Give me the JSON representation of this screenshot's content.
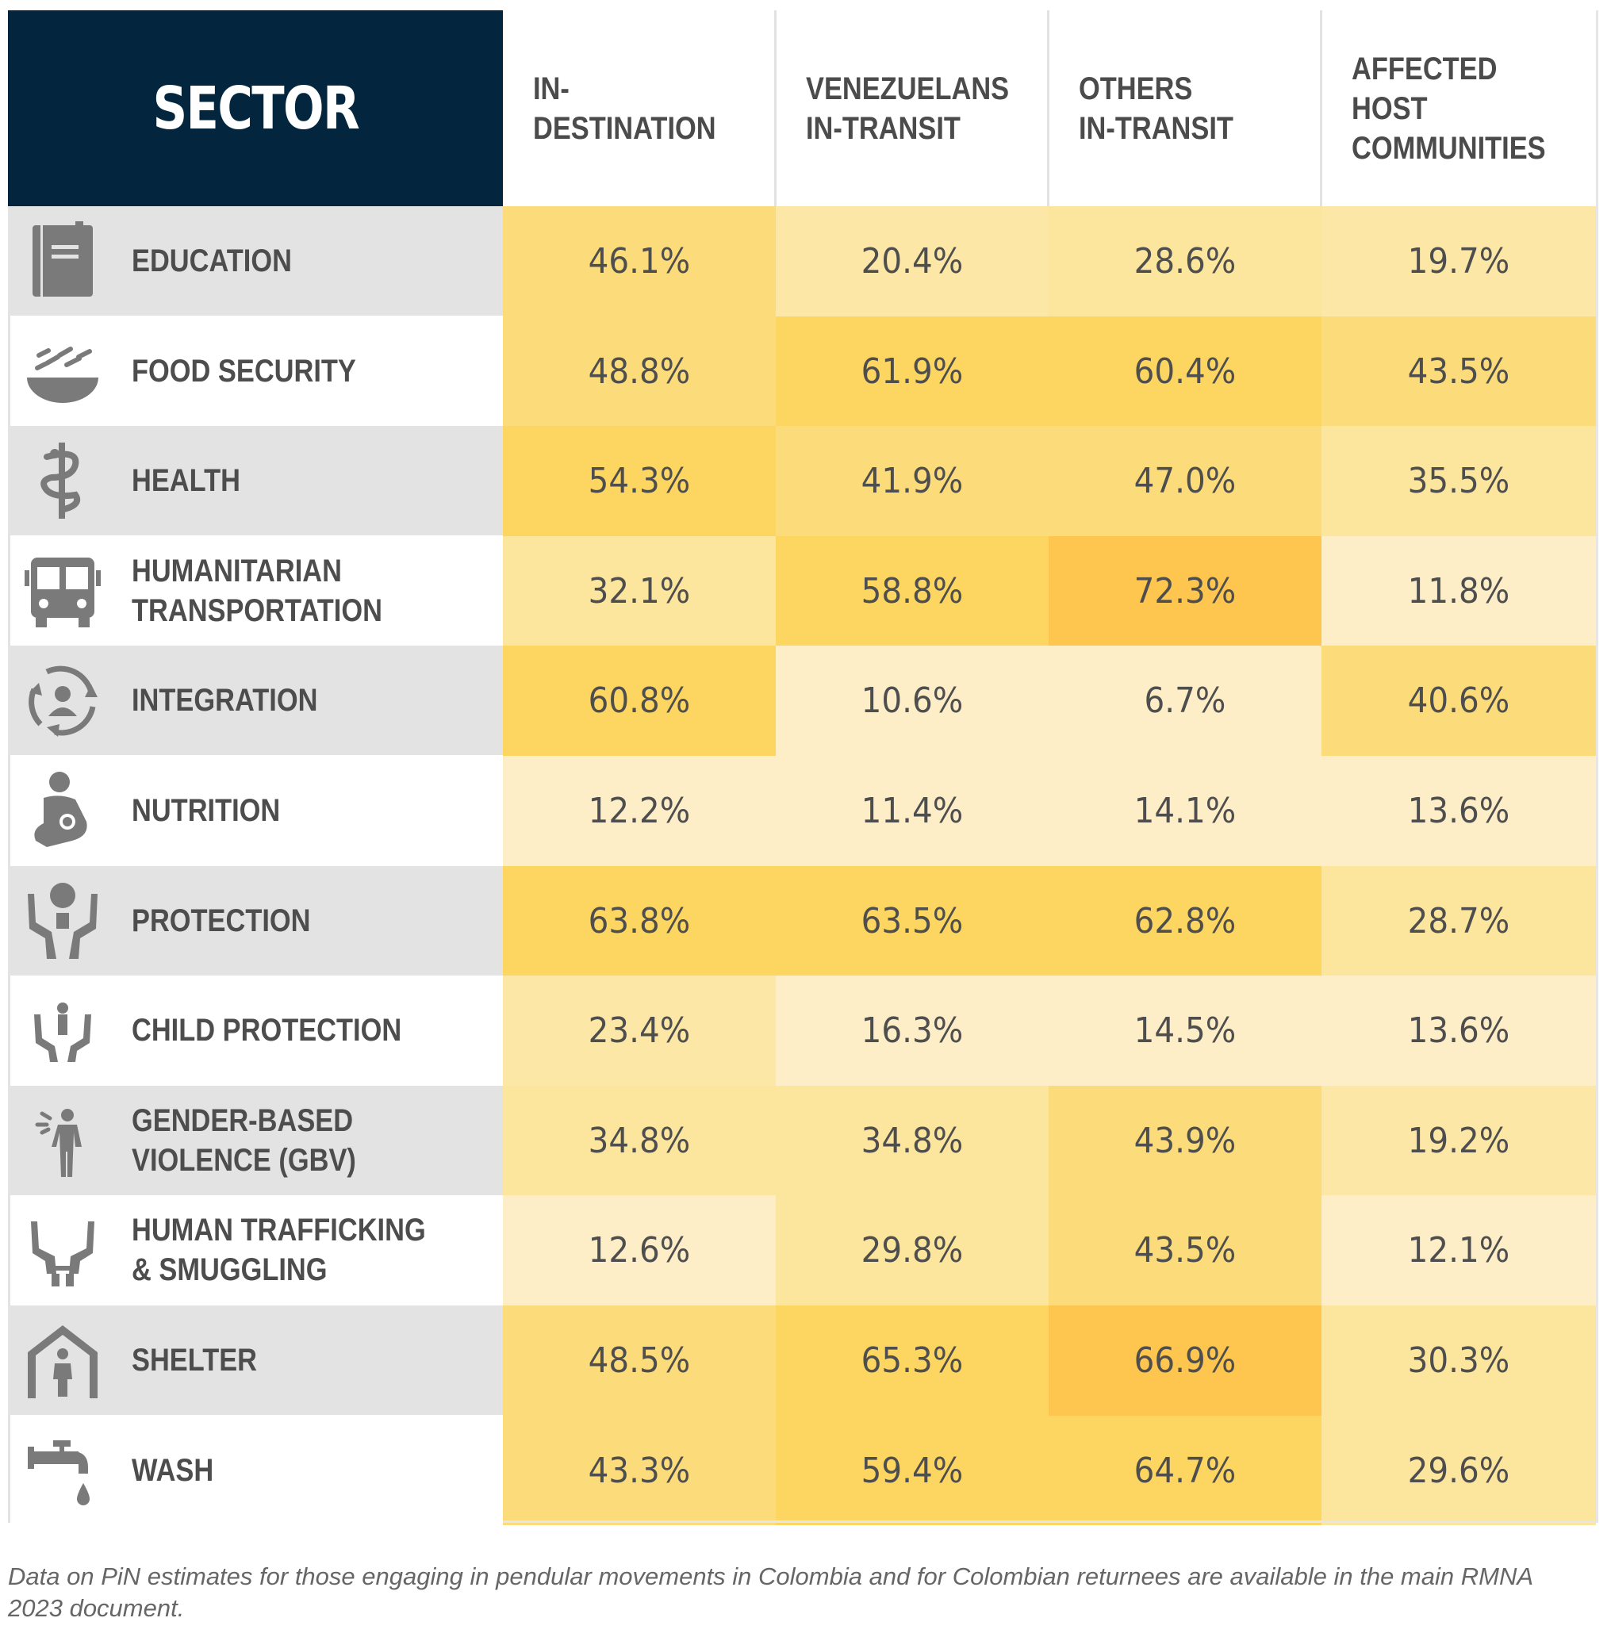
{
  "header": {
    "sector": "SECTOR",
    "columns": [
      "IN-DESTINATION",
      "VENEZUELANS\nIN-TRANSIT",
      "OTHERS\nIN-TRANSIT",
      "AFFECTED HOST\nCOMMUNITIES"
    ]
  },
  "rows": [
    {
      "label": "EDUCATION",
      "icon": "book-icon"
    },
    {
      "label": "FOOD SECURITY",
      "icon": "food-bowl-icon"
    },
    {
      "label": "HEALTH",
      "icon": "caduceus-icon"
    },
    {
      "label": "HUMANITARIAN\nTRANSPORTATION",
      "icon": "bus-icon"
    },
    {
      "label": "INTEGRATION",
      "icon": "integration-cycle-icon"
    },
    {
      "label": "NUTRITION",
      "icon": "breastfeeding-icon"
    },
    {
      "label": "PROTECTION",
      "icon": "protection-hands-icon"
    },
    {
      "label": "CHILD PROTECTION",
      "icon": "child-protection-icon"
    },
    {
      "label": "GENDER-BASED\nVIOLENCE (GBV)",
      "icon": "gbv-person-icon"
    },
    {
      "label": "HUMAN TRAFFICKING\n& SMUGGLING",
      "icon": "handcuffed-hands-icon"
    },
    {
      "label": "SHELTER",
      "icon": "shelter-house-icon"
    },
    {
      "label": "WASH",
      "icon": "water-tap-icon"
    }
  ],
  "chart_data": {
    "type": "heatmap",
    "columns": [
      "IN-DESTINATION",
      "VENEZUELANS IN-TRANSIT",
      "OTHERS IN-TRANSIT",
      "AFFECTED HOST COMMUNITIES"
    ],
    "rows": [
      "EDUCATION",
      "FOOD SECURITY",
      "HEALTH",
      "HUMANITARIAN TRANSPORTATION",
      "INTEGRATION",
      "NUTRITION",
      "PROTECTION",
      "CHILD PROTECTION",
      "GENDER-BASED VIOLENCE (GBV)",
      "HUMAN TRAFFICKING & SMUGGLING",
      "SHELTER",
      "WASH"
    ],
    "values": [
      [
        46.1,
        20.4,
        28.6,
        19.7
      ],
      [
        48.8,
        61.9,
        60.4,
        43.5
      ],
      [
        54.3,
        41.9,
        47.0,
        35.5
      ],
      [
        32.1,
        58.8,
        72.3,
        11.8
      ],
      [
        60.8,
        10.6,
        6.7,
        40.6
      ],
      [
        12.2,
        11.4,
        14.1,
        13.6
      ],
      [
        63.8,
        63.5,
        62.8,
        28.7
      ],
      [
        23.4,
        16.3,
        14.5,
        13.6
      ],
      [
        34.8,
        34.8,
        43.9,
        19.2
      ],
      [
        12.6,
        29.8,
        43.5,
        12.1
      ],
      [
        48.5,
        65.3,
        66.9,
        30.3
      ],
      [
        43.3,
        59.4,
        64.7,
        29.6
      ]
    ],
    "labels": [
      [
        "46.1%",
        "20.4%",
        "28.6%",
        "19.7%"
      ],
      [
        "48.8%",
        "61.9%",
        "60.4%",
        "43.5%"
      ],
      [
        "54.3%",
        "41.9%",
        "47.0%",
        "35.5%"
      ],
      [
        "32.1%",
        "58.8%",
        "72.3%",
        "11.8%"
      ],
      [
        "60.8%",
        "10.6%",
        "6.7%",
        "40.6%"
      ],
      [
        "12.2%",
        "11.4%",
        "14.1%",
        "13.6%"
      ],
      [
        "63.8%",
        "63.5%",
        "62.8%",
        "28.7%"
      ],
      [
        "23.4%",
        "16.3%",
        "14.5%",
        "13.6%"
      ],
      [
        "34.8%",
        "34.8%",
        "43.9%",
        "19.2%"
      ],
      [
        "12.6%",
        "29.8%",
        "43.5%",
        "12.1%"
      ],
      [
        "48.5%",
        "65.3%",
        "66.9%",
        "30.3%"
      ],
      [
        "43.3%",
        "59.4%",
        "64.7%",
        "29.6%"
      ]
    ],
    "colors": {
      "low": "#fdedc4",
      "mid": "#fce190",
      "high": "#fdd661",
      "highest": "#fec54f"
    },
    "header_color": "#03263e"
  },
  "footnote": "Data on PiN estimates for those engaging in pendular movements in Colombia and for Colombian returnees are available in the main RMNA 2023 document."
}
